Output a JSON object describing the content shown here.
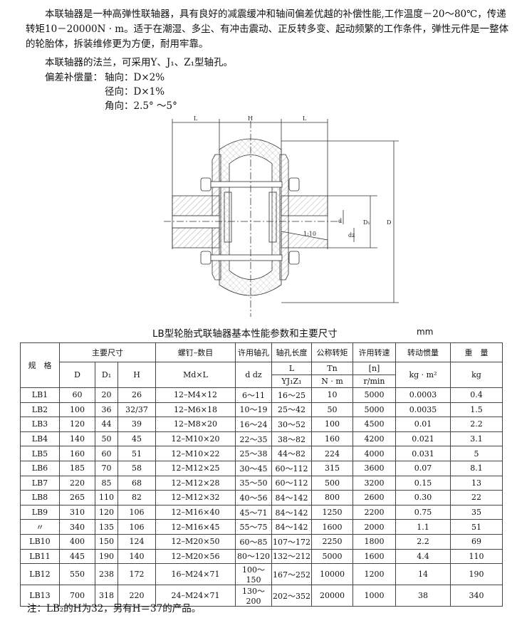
{
  "intro": {
    "p1": "本联轴器是一种高弹性联轴器，具有良好的减震缓冲和轴间偏差优越的补偿性能,工作温度－20～80℃，传递转矩10－20000N · m。适于在潮湿、多尘、有冲击震动、正反转多变、起动频繁的工作条件，弹性元件是一整体的轮胎体，拆装维修更为方便，耐用牢靠。",
    "p2": "本联轴器的法兰，可采用Y、J₁、Z₁型轴孔。",
    "comp_label": "偏差补偿量：",
    "axial": "轴向：D×2%",
    "radial": "径向：D×1%",
    "angular": "角向：2.5° ～5°"
  },
  "drawing": {
    "L": "L",
    "H": "H",
    "d": "d",
    "dz": "dz",
    "D1": "D₁",
    "D": "D",
    "taper": "1:10"
  },
  "table": {
    "title": "LB型轮胎式联轴器基本性能参数和主要尺寸",
    "unit": "mm",
    "headers": {
      "spec": "规　格",
      "main_dims": "主要尺寸",
      "D": "D",
      "D1": "D₁",
      "H": "H",
      "bolt": "螺钉–数目",
      "bolt_unit": "Md×L",
      "bore": "许用轴孔",
      "bore_unit": "d dz",
      "bore_len": "轴孔长度",
      "bore_len_sym": "L",
      "bore_len_unit": "YJ₁Z₁",
      "torque": "公称转矩",
      "torque_sym": "Tn",
      "torque_unit": "N · m",
      "speed": "许用转速",
      "speed_sym": "[n]",
      "speed_unit": "r/min",
      "inertia": "转动惯量",
      "inertia_unit": "kg · m²",
      "weight": "重　量",
      "weight_unit": "kg"
    },
    "rows": [
      [
        "LB1",
        "60",
        "20",
        "26",
        "12–M4×12",
        "6～11",
        "16～25",
        "10",
        "5000",
        "0.0003",
        "0.4"
      ],
      [
        "LB2",
        "100",
        "36",
        "32/37",
        "12–M6×18",
        "10～19",
        "25～42",
        "50",
        "5000",
        "0.0035",
        "1.5"
      ],
      [
        "LB3",
        "120",
        "44",
        "39",
        "12–M8×20",
        "16～24",
        "30～52",
        "100",
        "4500",
        "0.01",
        "2.2"
      ],
      [
        "LB4",
        "140",
        "50",
        "45",
        "12–M10×20",
        "22～35",
        "38～82",
        "160",
        "4200",
        "0.021",
        "3.1"
      ],
      [
        "LB5",
        "160",
        "60",
        "51",
        "12–M10×22",
        "25～38",
        "44～82",
        "224",
        "4000",
        "0.031",
        "5"
      ],
      [
        "LB6",
        "185",
        "70",
        "58",
        "12–M12×25",
        "30～45",
        "60～112",
        "315",
        "3600",
        "0.07",
        "8.1"
      ],
      [
        "LB7",
        "220",
        "85",
        "68",
        "12–M12×28",
        "35～50",
        "60～112",
        "500",
        "3200",
        "0.15",
        "13"
      ],
      [
        "LB8",
        "265",
        "110",
        "82",
        "12–M12×32",
        "40～56",
        "84～142",
        "800",
        "2600",
        "0.30",
        "22"
      ],
      [
        "LB9",
        "310",
        "120",
        "106",
        "12–M16×40",
        "45～71",
        "84～142",
        "1250",
        "2200",
        "0.75",
        "35"
      ],
      [
        "〃",
        "340",
        "135",
        "106",
        "12–M16×45",
        "55～75",
        "84～142",
        "1600",
        "2000",
        "1.1",
        "51"
      ],
      [
        "LB10",
        "400",
        "150",
        "124",
        "12–M20×50",
        "60～85",
        "107～172",
        "2250",
        "1800",
        "2.2",
        "69"
      ],
      [
        "LB11",
        "445",
        "190",
        "140",
        "12–M20×56",
        "80～120",
        "132～212",
        "5000",
        "1600",
        "4.4",
        "110"
      ],
      [
        "LB12",
        "550",
        "238",
        "172",
        "16–M24×71",
        "100～150",
        "167～252",
        "10000",
        "1200",
        "14",
        "190"
      ],
      [
        "LB13",
        "700",
        "318",
        "220",
        "24–M24×71",
        "130～200",
        "202～352",
        "20000",
        "1000",
        "38",
        "340"
      ]
    ]
  },
  "note": "注：LB₂的H为32，另有H＝37的产品。"
}
